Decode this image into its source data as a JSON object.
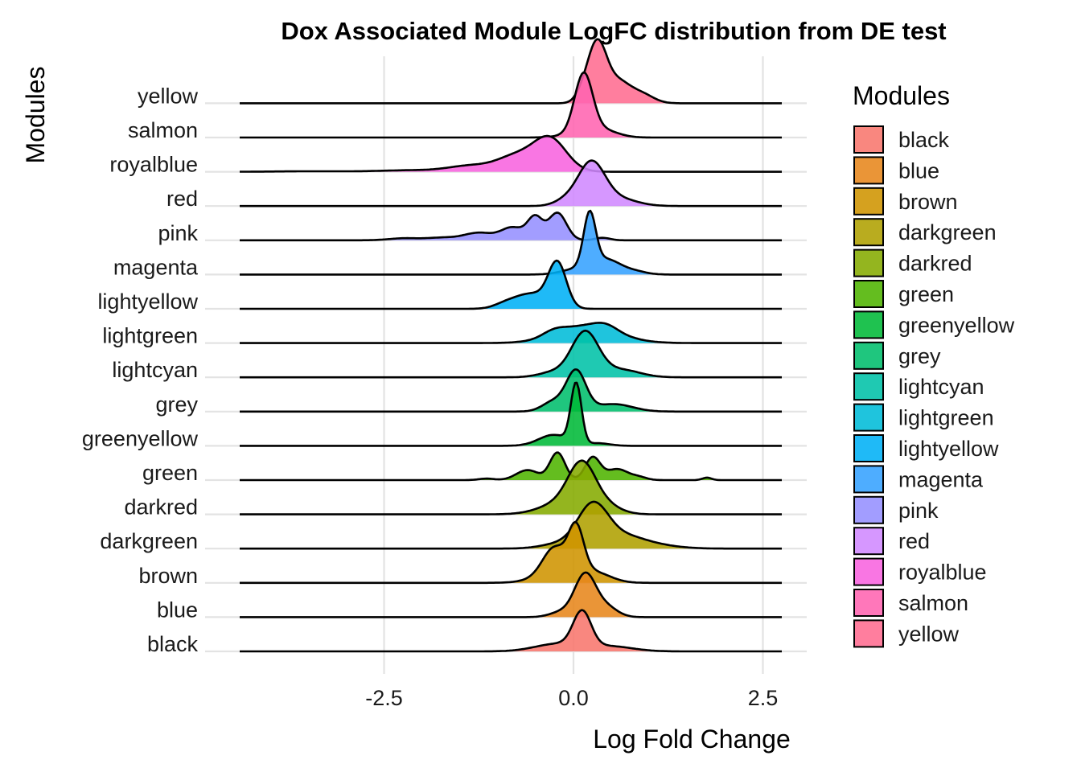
{
  "chart_data": {
    "type": "ridgeline",
    "title": "Dox Associated Module LogFC distribution from DE test",
    "xlabel": "Log Fold Change",
    "ylabel": "Modules",
    "xlim": [
      -4.5,
      2.75
    ],
    "x_ticks": [
      -2.5,
      0.0,
      2.5
    ],
    "x_tick_labels": [
      "-2.5",
      "0.0",
      "2.5"
    ],
    "grid": true,
    "legend": {
      "title": "Modules",
      "position": "right"
    },
    "series": [
      {
        "name": "black",
        "color": "#F8766D",
        "peaks": [
          [
            0.08,
            0.7,
            0.12
          ],
          [
            -0.25,
            0.15,
            0.3
          ],
          [
            0.45,
            0.1,
            0.3
          ]
        ]
      },
      {
        "name": "blue",
        "color": "#E7861B",
        "peaks": [
          [
            0.12,
            0.85,
            0.14
          ],
          [
            -0.2,
            0.1,
            0.15
          ],
          [
            0.4,
            0.2,
            0.15
          ]
        ]
      },
      {
        "name": "brown",
        "color": "#CF9400",
        "peaks": [
          [
            0.0,
            0.85,
            0.1
          ],
          [
            -0.3,
            0.45,
            0.15
          ],
          [
            -0.15,
            0.3,
            0.3
          ],
          [
            0.3,
            0.12,
            0.2
          ]
        ]
      },
      {
        "name": "darkgreen",
        "color": "#AFA100",
        "peaks": [
          [
            0.22,
            0.8,
            0.2
          ],
          [
            0.6,
            0.25,
            0.3
          ],
          [
            -0.2,
            0.1,
            0.25
          ],
          [
            1.1,
            0.05,
            0.3
          ]
        ]
      },
      {
        "name": "darkred",
        "color": "#85AB00",
        "peaks": [
          [
            0.08,
            0.85,
            0.18
          ],
          [
            -0.15,
            0.25,
            0.3
          ],
          [
            0.4,
            0.15,
            0.2
          ]
        ]
      },
      {
        "name": "green",
        "color": "#4FB400",
        "peaks": [
          [
            -0.25,
            0.55,
            0.1
          ],
          [
            0.22,
            0.45,
            0.1
          ],
          [
            -0.65,
            0.2,
            0.15
          ],
          [
            0.55,
            0.22,
            0.15
          ],
          [
            0.85,
            0.05,
            0.1
          ],
          [
            -1.2,
            0.03,
            0.1
          ],
          [
            1.75,
            0.05,
            0.06
          ]
        ]
      },
      {
        "name": "greenyellow",
        "color": "#00BA38",
        "peaks": [
          [
            0.0,
            1.2,
            0.07
          ],
          [
            -0.3,
            0.22,
            0.2
          ],
          [
            0.3,
            0.05,
            0.15
          ]
        ]
      },
      {
        "name": "grey",
        "color": "#00BE6C",
        "peaks": [
          [
            0.0,
            0.8,
            0.13
          ],
          [
            -0.3,
            0.2,
            0.15
          ],
          [
            0.5,
            0.15,
            0.25
          ]
        ]
      },
      {
        "name": "lightcyan",
        "color": "#00C1A7",
        "peaks": [
          [
            0.12,
            0.9,
            0.18
          ],
          [
            0.6,
            0.15,
            0.25
          ],
          [
            -0.3,
            0.1,
            0.2
          ]
        ]
      },
      {
        "name": "lightgreen",
        "color": "#00BCD8",
        "peaks": [
          [
            0.15,
            0.35,
            0.4
          ],
          [
            -0.3,
            0.1,
            0.15
          ],
          [
            0.4,
            0.1,
            0.15
          ]
        ]
      },
      {
        "name": "lightyellow",
        "color": "#00B0F6",
        "peaks": [
          [
            -0.25,
            0.88,
            0.12
          ],
          [
            -0.6,
            0.3,
            0.22
          ],
          [
            -0.95,
            0.08,
            0.15
          ]
        ]
      },
      {
        "name": "magenta",
        "color": "#35A2FF",
        "peaks": [
          [
            0.18,
            1.05,
            0.08
          ],
          [
            0.4,
            0.3,
            0.2
          ],
          [
            0.0,
            0.1,
            0.2
          ],
          [
            0.8,
            0.05,
            0.15
          ]
        ]
      },
      {
        "name": "pink",
        "color": "#9590FF",
        "peaks": [
          [
            -0.25,
            0.55,
            0.12
          ],
          [
            -0.55,
            0.45,
            0.1
          ],
          [
            -0.85,
            0.25,
            0.15
          ],
          [
            -1.3,
            0.15,
            0.2
          ],
          [
            -1.8,
            0.05,
            0.2
          ],
          [
            -2.3,
            0.04,
            0.2
          ],
          [
            0.35,
            0.05,
            0.1
          ]
        ]
      },
      {
        "name": "red",
        "color": "#D089FF",
        "peaks": [
          [
            0.2,
            0.85,
            0.18
          ],
          [
            0.55,
            0.15,
            0.25
          ],
          [
            -0.15,
            0.1,
            0.15
          ]
        ]
      },
      {
        "name": "royalblue",
        "color": "#F863DF",
        "peaks": [
          [
            -0.35,
            0.65,
            0.22
          ],
          [
            -0.8,
            0.3,
            0.25
          ],
          [
            -1.4,
            0.12,
            0.3
          ],
          [
            -2.2,
            0.03,
            0.4
          ],
          [
            -3.5,
            0.01,
            0.5
          ]
        ]
      },
      {
        "name": "salmon",
        "color": "#FF64B0",
        "peaks": [
          [
            0.1,
            1.2,
            0.12
          ],
          [
            0.35,
            0.15,
            0.2
          ],
          [
            -0.05,
            0.05,
            0.2
          ]
        ]
      },
      {
        "name": "yellow",
        "color": "#FF6C91",
        "peaks": [
          [
            0.28,
            1.1,
            0.12
          ],
          [
            0.55,
            0.45,
            0.18
          ],
          [
            0.9,
            0.15,
            0.15
          ],
          [
            0.1,
            0.2,
            0.1
          ]
        ]
      }
    ]
  }
}
